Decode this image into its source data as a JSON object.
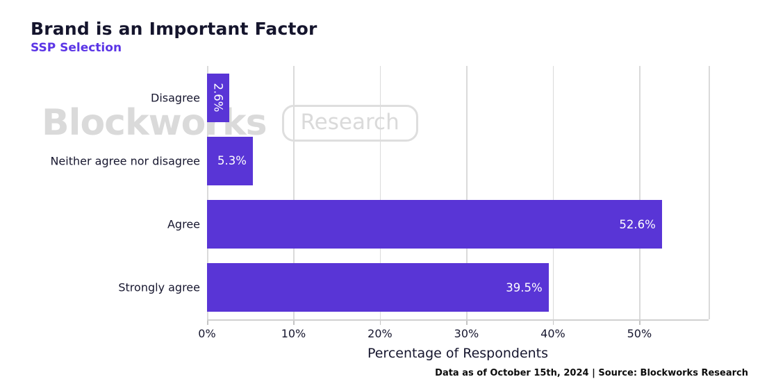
{
  "header": {
    "title": "Brand is an Important Factor",
    "subtitle": "SSP Selection"
  },
  "watermark": {
    "brand": "Blockworks",
    "badge": "Research"
  },
  "footer": {
    "note": "Data as of October 15th, 2024 | Source: Blockworks Research"
  },
  "colors": {
    "bar": "#5935d6",
    "subtitle": "#5b35e6",
    "text": "#16162e",
    "grid": "#dadada",
    "watermark": "#dadada",
    "value_label": "#ffffff",
    "background": "#ffffff"
  },
  "chart_data": {
    "type": "bar",
    "orientation": "horizontal",
    "title": "Brand is an Important Factor",
    "subtitle": "SSP Selection",
    "categories": [
      "Disagree",
      "Neither agree nor disagree",
      "Agree",
      "Strongly agree"
    ],
    "values": [
      2.6,
      5.3,
      52.6,
      39.5
    ],
    "value_labels": [
      "2.6%",
      "5.3%",
      "52.6%",
      "39.5%"
    ],
    "xlabel": "Percentage of Respondents",
    "ylabel": "",
    "x_ticks": [
      "0%",
      "10%",
      "20%",
      "30%",
      "40%",
      "50%"
    ],
    "x_tick_values": [
      0,
      10,
      20,
      30,
      40,
      50
    ],
    "xlim": [
      0,
      58
    ],
    "grid": true,
    "legend": false,
    "bar_color": "#5935d6"
  }
}
